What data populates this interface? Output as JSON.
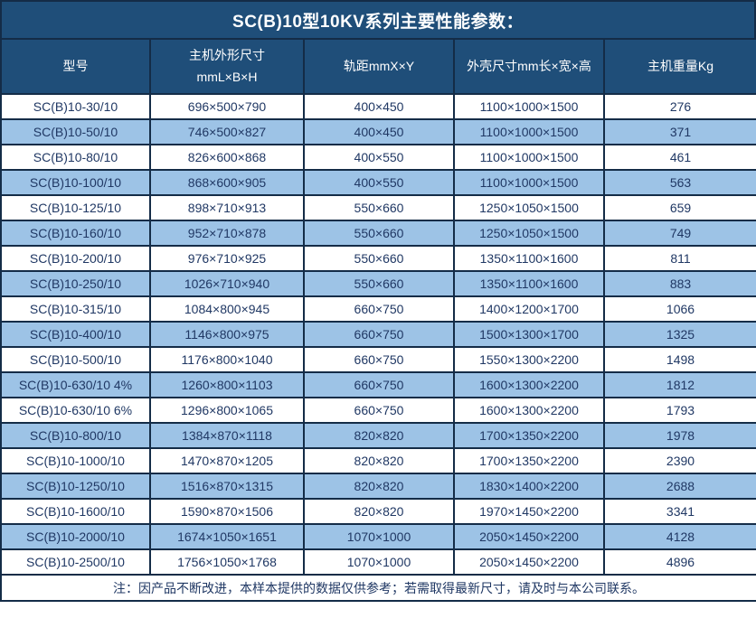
{
  "title": "SC(B)10型10KV系列主要性能参数：",
  "colors": {
    "header_bg": "#1F4E79",
    "header_text": "#FFFFFF",
    "row_alt_bg": "#9DC3E6",
    "row_bg": "#FFFFFF",
    "border": "#142C47",
    "data_text": "#203864"
  },
  "table": {
    "headers": [
      "型号",
      "主机外形尺寸\nmmL×B×H",
      "轨距mmX×Y",
      "外壳尺寸mm长×宽×高",
      "主机重量Kg"
    ],
    "rows": [
      [
        "SC(B)10-30/10",
        "696×500×790",
        "400×450",
        "1100×1000×1500",
        "276"
      ],
      [
        "SC(B)10-50/10",
        "746×500×827",
        "400×450",
        "1100×1000×1500",
        "371"
      ],
      [
        "SC(B)10-80/10",
        "826×600×868",
        "400×550",
        "1100×1000×1500",
        "461"
      ],
      [
        "SC(B)10-100/10",
        "868×600×905",
        "400×550",
        "1100×1000×1500",
        "563"
      ],
      [
        "SC(B)10-125/10",
        "898×710×913",
        "550×660",
        "1250×1050×1500",
        "659"
      ],
      [
        "SC(B)10-160/10",
        "952×710×878",
        "550×660",
        "1250×1050×1500",
        "749"
      ],
      [
        "SC(B)10-200/10",
        "976×710×925",
        "550×660",
        "1350×1100×1600",
        "811"
      ],
      [
        "SC(B)10-250/10",
        "1026×710×940",
        "550×660",
        "1350×1100×1600",
        "883"
      ],
      [
        "SC(B)10-315/10",
        "1084×800×945",
        "660×750",
        "1400×1200×1700",
        "1066"
      ],
      [
        "SC(B)10-400/10",
        "1146×800×975",
        "660×750",
        "1500×1300×1700",
        "1325"
      ],
      [
        "SC(B)10-500/10",
        "1176×800×1040",
        "660×750",
        "1550×1300×2200",
        "1498"
      ],
      [
        "SC(B)10-630/10 4%",
        "1260×800×1103",
        "660×750",
        "1600×1300×2200",
        "1812"
      ],
      [
        "SC(B)10-630/10 6%",
        "1296×800×1065",
        "660×750",
        "1600×1300×2200",
        "1793"
      ],
      [
        "SC(B)10-800/10",
        "1384×870×1118",
        "820×820",
        "1700×1350×2200",
        "1978"
      ],
      [
        "SC(B)10-1000/10",
        "1470×870×1205",
        "820×820",
        "1700×1350×2200",
        "2390"
      ],
      [
        "SC(B)10-1250/10",
        "1516×870×1315",
        "820×820",
        "1830×1400×2200",
        "2688"
      ],
      [
        "SC(B)10-1600/10",
        "1590×870×1506",
        "820×820",
        "1970×1450×2200",
        "3341"
      ],
      [
        "SC(B)10-2000/10",
        "1674×1050×1651",
        "1070×1000",
        "2050×1450×2200",
        "4128"
      ],
      [
        "SC(B)10-2500/10",
        "1756×1050×1768",
        "1070×1000",
        "2050×1450×2200",
        "4896"
      ]
    ],
    "footer_note": "注：因产品不断改进，本样本提供的数据仅供参考；若需取得最新尺寸，请及时与本公司联系。"
  }
}
